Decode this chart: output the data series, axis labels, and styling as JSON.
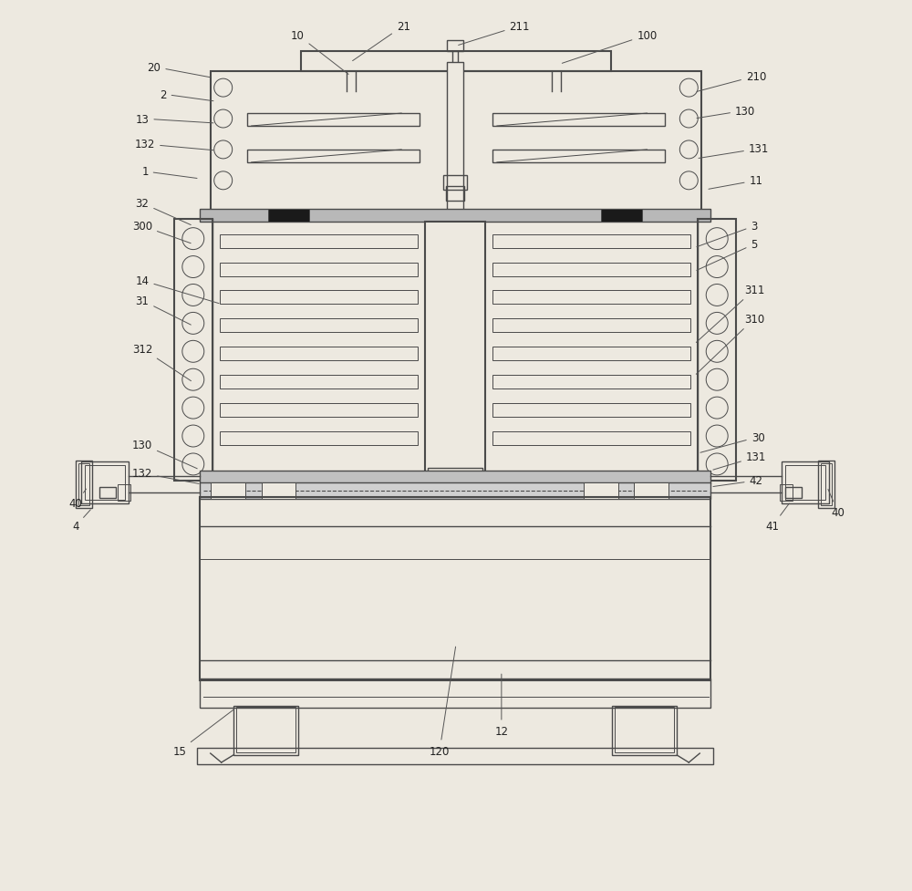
{
  "bg_color": "#ede9e0",
  "line_color": "#4a4a4a",
  "lw": 1.0,
  "lw2": 1.5,
  "lw3": 0.7,
  "fig_w": 10.0,
  "fig_h": 9.78
}
